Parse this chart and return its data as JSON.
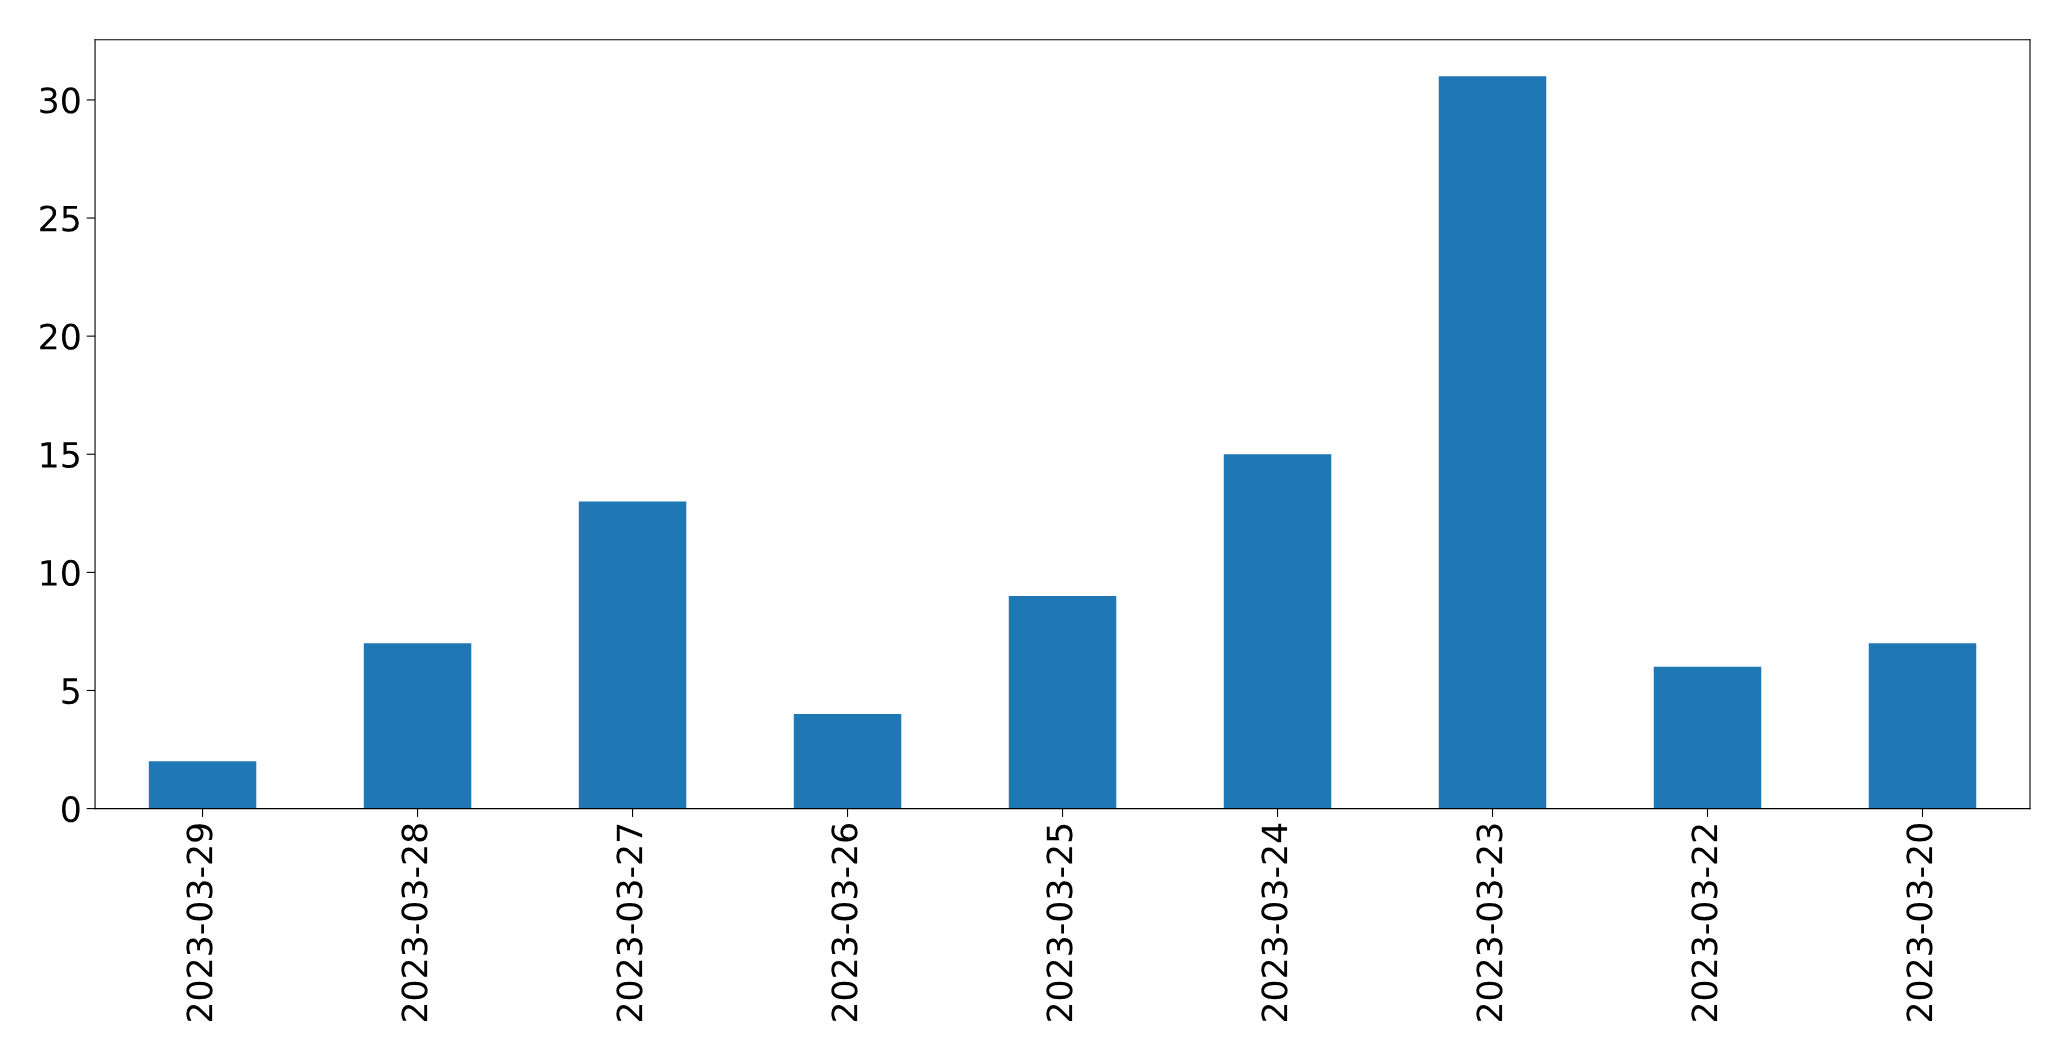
{
  "chart_data": {
    "type": "bar",
    "categories": [
      "2023-03-29",
      "2023-03-28",
      "2023-03-27",
      "2023-03-26",
      "2023-03-25",
      "2023-03-24",
      "2023-03-23",
      "2023-03-22",
      "2023-03-20"
    ],
    "values": [
      2,
      7,
      13,
      4,
      9,
      15,
      31,
      6,
      7
    ],
    "color": "#1f77b4",
    "ylim": [
      0,
      32.55
    ],
    "yticks": [
      0,
      5,
      10,
      15,
      20,
      25,
      30
    ],
    "grid": false,
    "legend": false
  }
}
